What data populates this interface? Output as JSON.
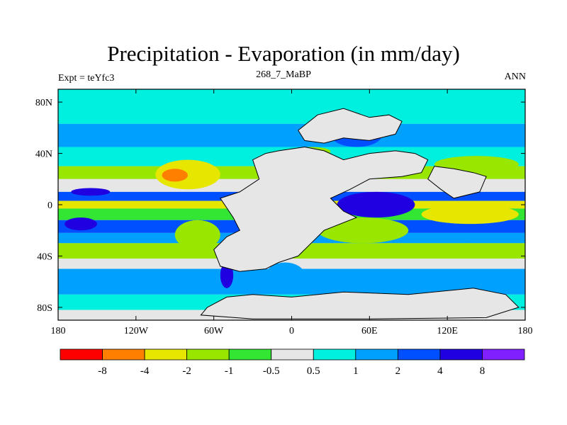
{
  "chart_data": {
    "type": "heatmap",
    "title": "Precipitation - Evaporation (in mm/day)",
    "subtitle": "268_7_MaBP",
    "left_label": "Expt = teYfc3",
    "right_label": "ANN",
    "xlabel": "",
    "ylabel": "",
    "xlim": [
      -180,
      180
    ],
    "ylim": [
      -90,
      90
    ],
    "x_ticks": [
      {
        "value": -180,
        "label": "180"
      },
      {
        "value": -120,
        "label": "120W"
      },
      {
        "value": -60,
        "label": "60W"
      },
      {
        "value": 0,
        "label": "0"
      },
      {
        "value": 60,
        "label": "60E"
      },
      {
        "value": 120,
        "label": "120E"
      },
      {
        "value": 180,
        "label": "180"
      }
    ],
    "y_ticks": [
      {
        "value": 80,
        "label": "80N"
      },
      {
        "value": 40,
        "label": "40N"
      },
      {
        "value": 0,
        "label": "0"
      },
      {
        "value": -40,
        "label": "40S"
      },
      {
        "value": -80,
        "label": "80S"
      }
    ],
    "colorbar": {
      "levels": [
        "-8",
        "-4",
        "-2",
        "-1",
        "-0.5",
        "0.5",
        "1",
        "2",
        "4",
        "8"
      ],
      "colors": [
        "#ff0000",
        "#ff8000",
        "#e6e600",
        "#99e600",
        "#33e633",
        "#e6e6e6",
        "#00f0e0",
        "#00a0ff",
        "#0050ff",
        "#2000e0",
        "#8020ff"
      ]
    },
    "bands": [
      {
        "lat": [
          63,
          90
        ],
        "value": 0.7
      },
      {
        "lat": [
          45,
          63
        ],
        "value": 1.5
      },
      {
        "lat": [
          30,
          45
        ],
        "value": 0.7
      },
      {
        "lat": [
          20,
          30
        ],
        "value": -1.5
      },
      {
        "lat": [
          10,
          20
        ],
        "value": 0
      },
      {
        "lat": [
          3,
          10
        ],
        "value": 3
      },
      {
        "lat": [
          -3,
          3
        ],
        "value": -3
      },
      {
        "lat": [
          -12,
          -3
        ],
        "value": -1
      },
      {
        "lat": [
          -22,
          -12
        ],
        "value": 2
      },
      {
        "lat": [
          -30,
          -22
        ],
        "value": 1
      },
      {
        "lat": [
          -42,
          -30
        ],
        "value": -1.5
      },
      {
        "lat": [
          -50,
          -42
        ],
        "value": 0
      },
      {
        "lat": [
          -70,
          -50
        ],
        "value": 1.5
      },
      {
        "lat": [
          -82,
          -70
        ],
        "value": 0.7
      },
      {
        "lat": [
          -90,
          -82
        ],
        "value": 0
      }
    ],
    "blobs": [
      {
        "lon": [
          -105,
          -55
        ],
        "lat": [
          12,
          35
        ],
        "value": -3
      },
      {
        "lon": [
          -100,
          -80
        ],
        "lat": [
          18,
          28
        ],
        "value": -5
      },
      {
        "lon": [
          -170,
          -140
        ],
        "lat": [
          7,
          13
        ],
        "value": 5
      },
      {
        "lon": [
          -175,
          -150
        ],
        "lat": [
          -20,
          -10
        ],
        "value": 5
      },
      {
        "lon": [
          -90,
          -55
        ],
        "lat": [
          -35,
          -12
        ],
        "value": -2
      },
      {
        "lon": [
          -45,
          -20
        ],
        "lat": [
          -30,
          -22
        ],
        "value": -5
      },
      {
        "lon": [
          35,
          95
        ],
        "lat": [
          -10,
          10
        ],
        "value": 5
      },
      {
        "lon": [
          20,
          90
        ],
        "lat": [
          -30,
          -10
        ],
        "value": -1.5
      },
      {
        "lon": [
          100,
          175
        ],
        "lat": [
          -15,
          0
        ],
        "value": -3
      },
      {
        "lon": [
          110,
          175
        ],
        "lat": [
          25,
          38
        ],
        "value": -1.5
      },
      {
        "lon": [
          -55,
          -45
        ],
        "lat": [
          -65,
          -45
        ],
        "value": 5
      },
      {
        "lon": [
          30,
          70
        ],
        "lat": [
          45,
          65
        ],
        "value": 2
      },
      {
        "lon": [
          45,
          60
        ],
        "lat": [
          30,
          38
        ],
        "value": -5
      },
      {
        "lon": [
          0,
          30
        ],
        "lat": [
          38,
          45
        ],
        "value": -1.5
      },
      {
        "lon": [
          -20,
          10
        ],
        "lat": [
          -65,
          -45
        ],
        "value": 1.5
      },
      {
        "lon": [
          125,
          145
        ],
        "lat": [
          -40,
          -30
        ],
        "value": -1.5
      }
    ],
    "continents": [
      {
        "name": "pangaea",
        "points": [
          [
            -10,
            42
          ],
          [
            10,
            45
          ],
          [
            25,
            42
          ],
          [
            40,
            35
          ],
          [
            60,
            40
          ],
          [
            80,
            42
          ],
          [
            95,
            40
          ],
          [
            105,
            35
          ],
          [
            100,
            25
          ],
          [
            85,
            22
          ],
          [
            60,
            20
          ],
          [
            45,
            12
          ],
          [
            30,
            5
          ],
          [
            40,
            -5
          ],
          [
            50,
            -10
          ],
          [
            25,
            -20
          ],
          [
            15,
            -30
          ],
          [
            5,
            -40
          ],
          [
            -10,
            -45
          ],
          [
            -20,
            -50
          ],
          [
            -40,
            -52
          ],
          [
            -55,
            -48
          ],
          [
            -60,
            -35
          ],
          [
            -50,
            -25
          ],
          [
            -40,
            -20
          ],
          [
            -45,
            -10
          ],
          [
            -55,
            5
          ],
          [
            -40,
            10
          ],
          [
            -25,
            20
          ],
          [
            -30,
            35
          ],
          [
            -20,
            40
          ]
        ]
      },
      {
        "name": "north-asia",
        "points": [
          [
            5,
            58
          ],
          [
            20,
            70
          ],
          [
            40,
            75
          ],
          [
            60,
            68
          ],
          [
            75,
            70
          ],
          [
            85,
            65
          ],
          [
            80,
            55
          ],
          [
            60,
            50
          ],
          [
            40,
            52
          ],
          [
            25,
            48
          ],
          [
            10,
            50
          ]
        ]
      },
      {
        "name": "east-asia",
        "points": [
          [
            110,
            30
          ],
          [
            125,
            28
          ],
          [
            140,
            25
          ],
          [
            150,
            22
          ],
          [
            145,
            10
          ],
          [
            125,
            5
          ],
          [
            115,
            12
          ],
          [
            105,
            20
          ]
        ]
      },
      {
        "name": "antarctica",
        "points": [
          [
            -65,
            -80
          ],
          [
            -50,
            -72
          ],
          [
            -30,
            -70
          ],
          [
            0,
            -72
          ],
          [
            40,
            -68
          ],
          [
            90,
            -70
          ],
          [
            140,
            -65
          ],
          [
            165,
            -70
          ],
          [
            175,
            -80
          ],
          [
            150,
            -88
          ],
          [
            60,
            -89
          ],
          [
            -30,
            -89
          ],
          [
            -70,
            -86
          ]
        ]
      }
    ]
  }
}
